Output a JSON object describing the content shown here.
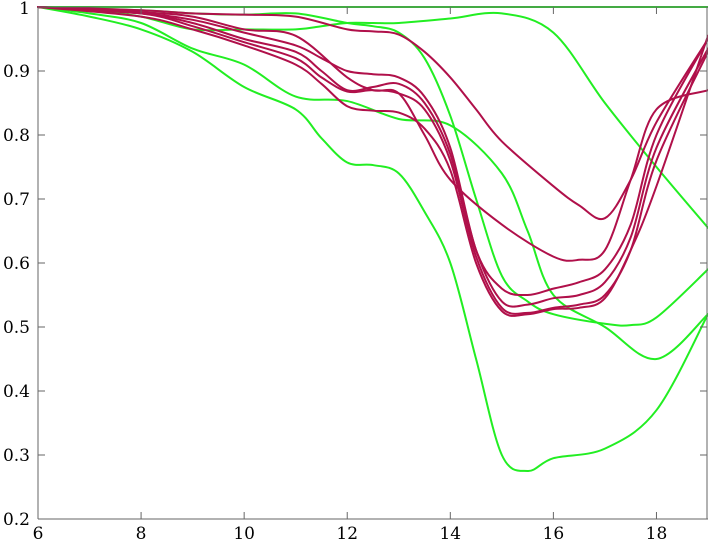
{
  "chart_data": {
    "type": "line",
    "title": "",
    "xlabel": "",
    "ylabel": "",
    "xlim": [
      6,
      19
    ],
    "ylim": [
      0.2,
      1
    ],
    "xticks": [
      6,
      8,
      10,
      12,
      14,
      16,
      18
    ],
    "yticks": [
      0.2,
      0.3,
      0.4,
      0.5,
      0.6,
      0.7,
      0.8,
      0.9,
      1
    ],
    "ytick_labels": [
      "0.2",
      "0.3",
      "0.4",
      "0.5",
      "0.6",
      "0.7",
      "0.8",
      "0.9",
      "1"
    ],
    "grid": false,
    "legend": "none",
    "colors": {
      "green": "#22ee22",
      "crimson": "#b0104a",
      "axis": "#666666"
    },
    "series": [
      {
        "color": "green",
        "x": [
          6,
          8,
          10,
          11,
          19
        ],
        "y": [
          1.0,
          1.0,
          1.0,
          1.0,
          1.0
        ]
      },
      {
        "color": "green",
        "x": [
          6,
          7,
          8,
          9,
          10,
          11,
          11.5,
          12,
          12.5,
          13,
          14,
          15,
          16,
          17,
          18,
          19
        ],
        "y": [
          1.0,
          0.995,
          0.985,
          0.965,
          0.965,
          0.965,
          0.97,
          0.975,
          0.975,
          0.975,
          0.982,
          0.99,
          0.96,
          0.85,
          0.75,
          0.655
        ]
      },
      {
        "color": "green",
        "x": [
          6,
          8,
          9,
          10,
          11,
          12,
          12.5,
          13,
          13.5,
          14,
          14.5,
          15,
          15.5,
          16,
          17,
          17.5,
          18,
          19
        ],
        "y": [
          1.0,
          0.995,
          0.99,
          0.988,
          0.99,
          0.975,
          0.97,
          0.96,
          0.92,
          0.83,
          0.7,
          0.58,
          0.54,
          0.52,
          0.505,
          0.503,
          0.515,
          0.59
        ]
      },
      {
        "color": "green",
        "x": [
          6,
          7,
          8,
          9,
          10,
          11,
          12,
          13,
          14,
          15,
          15.5,
          16,
          17,
          18,
          19
        ],
        "y": [
          1.0,
          0.99,
          0.975,
          0.935,
          0.91,
          0.86,
          0.853,
          0.825,
          0.815,
          0.74,
          0.65,
          0.55,
          0.5,
          0.45,
          0.52
        ]
      },
      {
        "color": "green",
        "x": [
          6,
          7,
          8,
          9,
          10,
          11,
          11.5,
          12,
          12.5,
          13,
          13.5,
          14,
          14.5,
          15,
          15.5,
          16,
          17,
          18,
          19
        ],
        "y": [
          1.0,
          0.985,
          0.965,
          0.93,
          0.875,
          0.84,
          0.795,
          0.757,
          0.753,
          0.74,
          0.68,
          0.6,
          0.45,
          0.3,
          0.275,
          0.295,
          0.31,
          0.37,
          0.52
        ]
      },
      {
        "color": "crimson",
        "x": [
          6,
          8,
          9,
          10,
          11,
          12,
          12.5,
          13,
          13.5,
          14,
          14.5,
          15,
          16,
          16.5,
          17,
          17.5,
          18,
          19
        ],
        "y": [
          1.0,
          0.995,
          0.99,
          0.988,
          0.985,
          0.965,
          0.962,
          0.957,
          0.93,
          0.89,
          0.84,
          0.79,
          0.72,
          0.69,
          0.67,
          0.73,
          0.82,
          0.95
        ]
      },
      {
        "color": "crimson",
        "x": [
          6,
          8,
          9,
          10,
          11,
          11.5,
          12,
          12.5,
          13,
          13.5,
          14,
          14.5,
          15,
          15.5,
          16,
          16.5,
          17,
          17.5,
          18,
          19
        ],
        "y": [
          1.0,
          0.99,
          0.98,
          0.96,
          0.94,
          0.92,
          0.9,
          0.895,
          0.89,
          0.86,
          0.78,
          0.62,
          0.56,
          0.55,
          0.56,
          0.57,
          0.59,
          0.66,
          0.8,
          0.95
        ]
      },
      {
        "color": "crimson",
        "x": [
          6,
          8,
          9,
          10,
          11,
          11.5,
          12,
          12.5,
          13,
          13.5,
          14,
          14.5,
          15,
          15.5,
          16,
          16.5,
          17,
          17.5,
          18,
          19
        ],
        "y": [
          1.0,
          0.99,
          0.975,
          0.95,
          0.93,
          0.9,
          0.87,
          0.875,
          0.88,
          0.85,
          0.77,
          0.62,
          0.54,
          0.535,
          0.545,
          0.55,
          0.57,
          0.64,
          0.78,
          0.935
        ]
      },
      {
        "color": "crimson",
        "x": [
          6,
          8,
          9,
          10,
          11,
          11.5,
          12,
          12.5,
          13,
          13.5,
          14,
          14.5,
          15,
          15.5,
          16,
          16.5,
          17,
          17.5,
          18,
          19
        ],
        "y": [
          1.0,
          0.99,
          0.97,
          0.945,
          0.92,
          0.89,
          0.868,
          0.87,
          0.865,
          0.84,
          0.76,
          0.61,
          0.53,
          0.522,
          0.53,
          0.535,
          0.55,
          0.62,
          0.76,
          0.93
        ]
      },
      {
        "color": "crimson",
        "x": [
          6,
          8,
          9,
          10,
          11,
          11.5,
          12,
          12.5,
          13,
          13.5,
          14,
          14.5,
          15,
          15.5,
          16,
          16.5,
          17,
          17.5,
          18,
          19
        ],
        "y": [
          1.0,
          0.985,
          0.965,
          0.94,
          0.91,
          0.88,
          0.845,
          0.838,
          0.835,
          0.81,
          0.745,
          0.6,
          0.525,
          0.52,
          0.528,
          0.53,
          0.545,
          0.62,
          0.72,
          0.955
        ]
      },
      {
        "color": "crimson",
        "x": [
          6,
          8,
          9,
          10,
          11,
          12,
          12.5,
          13,
          13.5,
          14,
          15,
          16,
          16.5,
          17,
          17.5,
          18,
          19
        ],
        "y": [
          1.0,
          0.992,
          0.985,
          0.965,
          0.955,
          0.89,
          0.87,
          0.865,
          0.8,
          0.73,
          0.66,
          0.61,
          0.605,
          0.62,
          0.73,
          0.84,
          0.87
        ]
      }
    ]
  }
}
